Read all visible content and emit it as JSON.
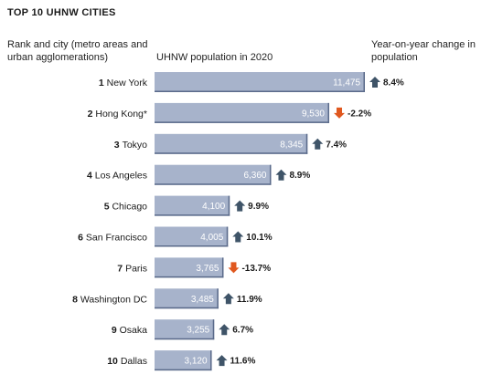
{
  "chart_data": {
    "type": "bar",
    "orientation": "horizontal",
    "title": "TOP 10 UHNW CITIES",
    "category_header": "Rank and city (metro areas and urban agglomerations)",
    "value_header": "UHNW population in 2020",
    "change_header": "Year-on-year change in population",
    "categories": [
      {
        "rank": "1",
        "city": "New York"
      },
      {
        "rank": "2",
        "city": "Hong Kong*"
      },
      {
        "rank": "3",
        "city": "Tokyo"
      },
      {
        "rank": "4",
        "city": "Los Angeles"
      },
      {
        "rank": "5",
        "city": "Chicago"
      },
      {
        "rank": "6",
        "city": "San Francisco"
      },
      {
        "rank": "7",
        "city": "Paris"
      },
      {
        "rank": "8",
        "city": "Washington DC"
      },
      {
        "rank": "9",
        "city": "Osaka"
      },
      {
        "rank": "10",
        "city": "Dallas"
      }
    ],
    "values": [
      11475,
      9530,
      8345,
      6360,
      4100,
      4005,
      3765,
      3485,
      3255,
      3120
    ],
    "value_labels": [
      "11,475",
      "9,530",
      "8,345",
      "6,360",
      "4,100",
      "4,005",
      "3,765",
      "3,485",
      "3,255",
      "3,120"
    ],
    "changes": [
      8.4,
      -2.2,
      7.4,
      8.9,
      9.9,
      10.1,
      -13.7,
      11.9,
      6.7,
      11.6
    ],
    "change_labels": [
      "8.4%",
      "-2.2%",
      "7.4%",
      "8.9%",
      "9.9%",
      "10.1%",
      "-13.7%",
      "11.9%",
      "6.7%",
      "11.6%"
    ],
    "xlim": [
      0,
      11475
    ],
    "grid": false,
    "legend": "none"
  },
  "colors": {
    "bar_fill": "#a7b3cb",
    "bar_edge": "#5a6a8a",
    "up_arrow": "#3f5468",
    "down_arrow": "#e0581f"
  }
}
